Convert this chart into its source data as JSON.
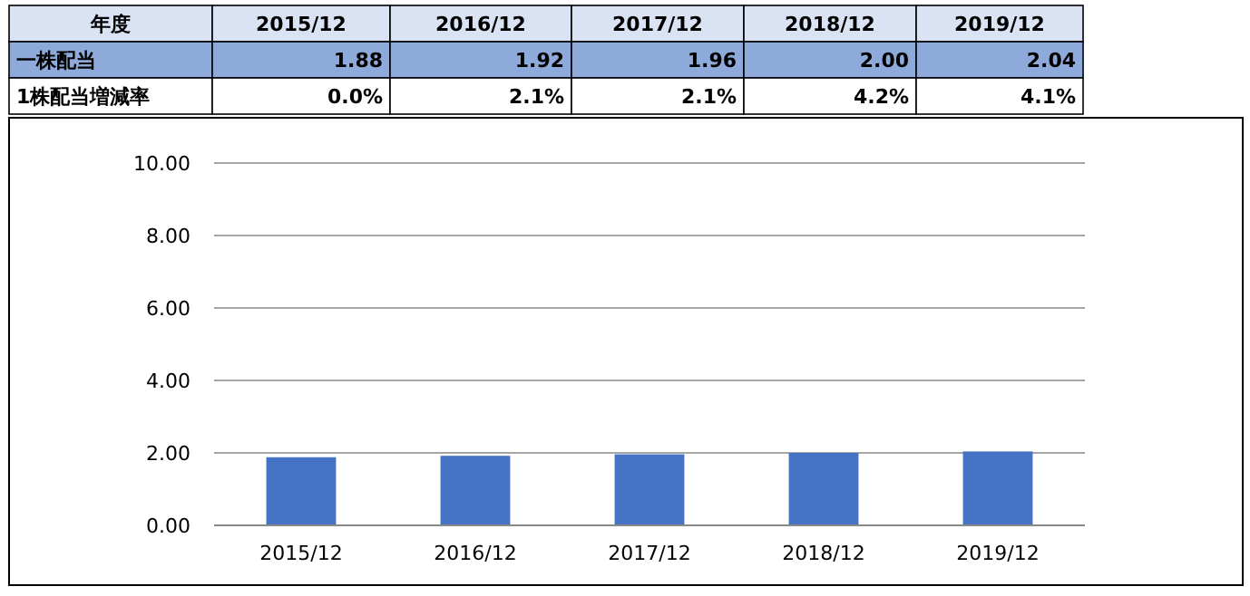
{
  "chart_data": {
    "type": "bar",
    "categories": [
      "2015/12",
      "2016/12",
      "2017/12",
      "2018/12",
      "2019/12"
    ],
    "series": [
      {
        "name": "一株配当",
        "color": "#4472c4",
        "values": [
          1.88,
          1.92,
          1.96,
          2.0,
          2.04
        ],
        "value_labels": [
          "1.88",
          "1.92",
          "1.96",
          "2.00",
          "2.04"
        ]
      }
    ],
    "annotations": [
      "年度",
      "1株配当増減率",
      "0.0%",
      "2.1%",
      "2.1%",
      "4.2%",
      "4.1%"
    ],
    "ylim": [
      0,
      10
    ],
    "yticks": [
      {
        "value": 0,
        "label": "0.00"
      },
      {
        "value": 2,
        "label": "2.00"
      },
      {
        "value": 4,
        "label": "4.00"
      },
      {
        "value": 6,
        "label": "6.00"
      },
      {
        "value": 8,
        "label": "8.00"
      },
      {
        "value": 10,
        "label": "10.00"
      }
    ],
    "grid": "y"
  }
}
